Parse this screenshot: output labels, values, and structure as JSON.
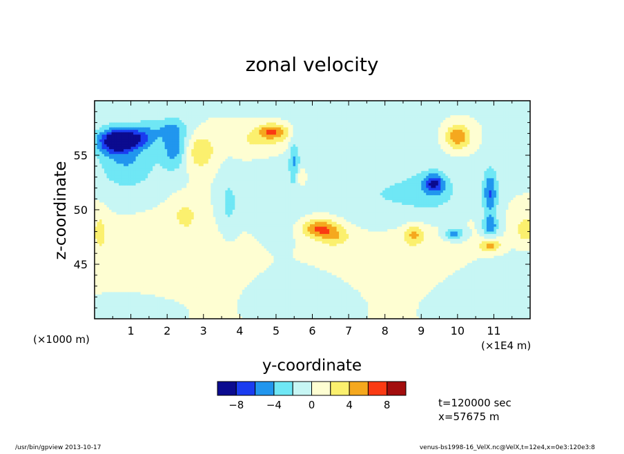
{
  "chart_data": {
    "type": "heatmap",
    "title": "zonal velocity",
    "xlabel": "y-coordinate",
    "ylabel": "z-coordinate",
    "x_unit_left": "(×1000 m)",
    "x_unit_right": "(×1E4 m)",
    "xlim": [
      0,
      12
    ],
    "ylim": [
      40,
      60
    ],
    "x_ticks": [
      1,
      2,
      3,
      4,
      5,
      6,
      7,
      8,
      9,
      10,
      11
    ],
    "x_tick_labels": [
      "1",
      "2",
      "3",
      "4",
      "5",
      "6",
      "7",
      "8",
      "9",
      "10",
      "11"
    ],
    "y_ticks": [
      45,
      50,
      55
    ],
    "y_tick_labels": [
      "45",
      "50",
      "55"
    ],
    "colorbar": {
      "levels": [
        -10,
        -8,
        -6,
        -4,
        -2,
        0,
        2,
        4,
        6,
        8,
        10
      ],
      "colors": [
        "#0b0b8f",
        "#1a3cf0",
        "#2196ee",
        "#6fe7f5",
        "#c7f6f4",
        "#fefed2",
        "#fbf06e",
        "#f5a81e",
        "#fa3a13",
        "#a30d0d"
      ],
      "tick_values": [
        -8,
        -4,
        0,
        4,
        8
      ],
      "tick_labels": [
        "−8",
        "−4",
        "0",
        "4",
        "8"
      ]
    },
    "features": [
      {
        "y": 0.55,
        "z": 56.3,
        "value": -8.5,
        "sx": 0.35,
        "sz": 0.8
      },
      {
        "y": 1.15,
        "z": 56.5,
        "value": -5.0,
        "sx": 0.35,
        "sz": 0.6
      },
      {
        "y": 0.9,
        "z": 54.5,
        "value": -4.0,
        "sx": 0.6,
        "sz": 2.0
      },
      {
        "y": 2.2,
        "z": 55.8,
        "value": -5.0,
        "sx": 0.25,
        "sz": 1.5
      },
      {
        "y": 1.8,
        "z": 57.5,
        "value": -2.5,
        "sx": 0.6,
        "sz": 0.7
      },
      {
        "y": 2.9,
        "z": 55.3,
        "value": 3.5,
        "sx": 0.3,
        "sz": 1.2
      },
      {
        "y": 4.9,
        "z": 57.2,
        "value": 5.5,
        "sx": 0.3,
        "sz": 0.5
      },
      {
        "y": 4.6,
        "z": 56.3,
        "value": 2.5,
        "sx": 0.7,
        "sz": 0.9
      },
      {
        "y": 6.2,
        "z": 48.3,
        "value": 6.0,
        "sx": 0.35,
        "sz": 0.6
      },
      {
        "y": 6.6,
        "z": 47.5,
        "value": 3.0,
        "sx": 0.3,
        "sz": 0.6
      },
      {
        "y": 9.35,
        "z": 52.4,
        "value": -6.5,
        "sx": 0.2,
        "sz": 0.6
      },
      {
        "y": 9.35,
        "z": 51.5,
        "value": -2.5,
        "sx": 0.6,
        "sz": 1.5
      },
      {
        "y": 10.0,
        "z": 56.7,
        "value": 6.0,
        "sx": 0.25,
        "sz": 0.8
      },
      {
        "y": 9.9,
        "z": 47.8,
        "value": -5.0,
        "sx": 0.2,
        "sz": 0.4
      },
      {
        "y": 10.9,
        "z": 51.5,
        "value": -6.0,
        "sx": 0.15,
        "sz": 1.6
      },
      {
        "y": 10.9,
        "z": 48.5,
        "value": -5.0,
        "sx": 0.15,
        "sz": 0.6
      },
      {
        "y": 10.9,
        "z": 46.7,
        "value": 5.0,
        "sx": 0.2,
        "sz": 0.4
      },
      {
        "y": 11.9,
        "z": 48.2,
        "value": 4.0,
        "sx": 0.2,
        "sz": 0.8
      },
      {
        "y": 8.8,
        "z": 47.7,
        "value": 4.0,
        "sx": 0.2,
        "sz": 0.6
      },
      {
        "y": 5.5,
        "z": 54.7,
        "value": -3.5,
        "sx": 0.1,
        "sz": 1.5
      },
      {
        "y": 5.7,
        "z": 53.0,
        "value": 2.5,
        "sx": 0.1,
        "sz": 0.6
      },
      {
        "y": 0.15,
        "z": 48.0,
        "value": 2.5,
        "sx": 0.15,
        "sz": 1.3
      },
      {
        "y": 7.3,
        "z": 56.0,
        "value": -1.5,
        "sx": 1.5,
        "sz": 3.5
      },
      {
        "y": 8.3,
        "z": 45.0,
        "value": 1.5,
        "sx": 1.4,
        "sz": 3.0
      },
      {
        "y": 3.0,
        "z": 44.5,
        "value": 1.2,
        "sx": 2.5,
        "sz": 3.0
      },
      {
        "y": 5.8,
        "z": 43.0,
        "value": -1.3,
        "sx": 2.0,
        "sz": 2.2
      },
      {
        "y": 11.0,
        "z": 42.5,
        "value": -1.2,
        "sx": 1.5,
        "sz": 2.0
      },
      {
        "y": 1.0,
        "z": 41.0,
        "value": -1.2,
        "sx": 1.0,
        "sz": 1.2
      },
      {
        "y": 3.7,
        "z": 50.5,
        "value": -2.5,
        "sx": 0.2,
        "sz": 2.0
      },
      {
        "y": 5.0,
        "z": 50.0,
        "value": -1.5,
        "sx": 0.6,
        "sz": 2.5
      },
      {
        "y": 7.9,
        "z": 50.5,
        "value": -1.6,
        "sx": 0.8,
        "sz": 2.0
      },
      {
        "y": 2.5,
        "z": 49.5,
        "value": 2.5,
        "sx": 0.25,
        "sz": 1.0
      }
    ]
  },
  "info": {
    "time": "t=120000 sec",
    "position": "x=57675 m"
  },
  "footer": {
    "left": "/usr/bin/gpview   2013-10-17",
    "right": "venus-bs1998-16_VelX.nc@VelX,t=12e4,x=0e3:120e3:8"
  }
}
